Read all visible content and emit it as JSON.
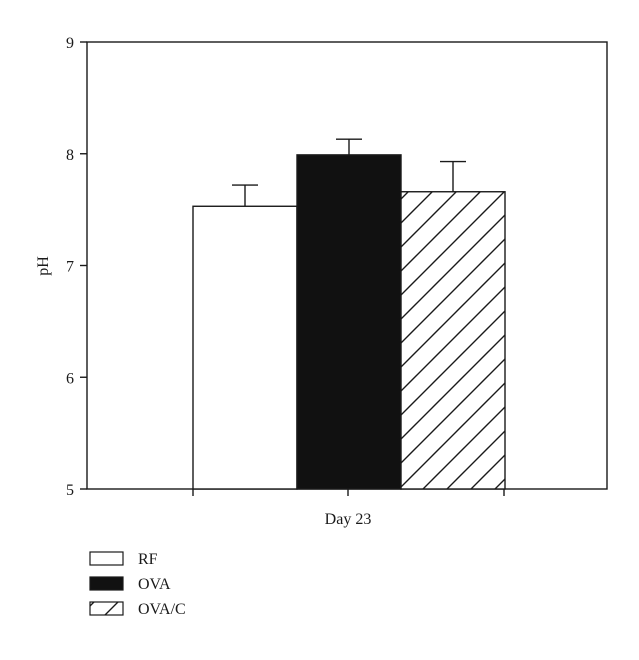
{
  "chart_data": {
    "type": "bar",
    "title": "",
    "xlabel": "",
    "ylabel": "pH",
    "ylim": [
      5,
      9
    ],
    "yticks": [
      "5",
      "6",
      "7",
      "8",
      "9"
    ],
    "categories": [
      "Day 23"
    ],
    "grid": false,
    "legend_position": "bottom-left",
    "series": [
      {
        "name": "RF",
        "values": [
          7.53
        ],
        "error": [
          0.19
        ],
        "fill": "white",
        "color": "#ffffff"
      },
      {
        "name": "OVA",
        "values": [
          7.99
        ],
        "error": [
          0.14
        ],
        "fill": "solid",
        "color": "#111111"
      },
      {
        "name": "OVA/C",
        "values": [
          7.66
        ],
        "error": [
          0.27
        ],
        "fill": "hatch",
        "color": "#ffffff"
      }
    ]
  }
}
